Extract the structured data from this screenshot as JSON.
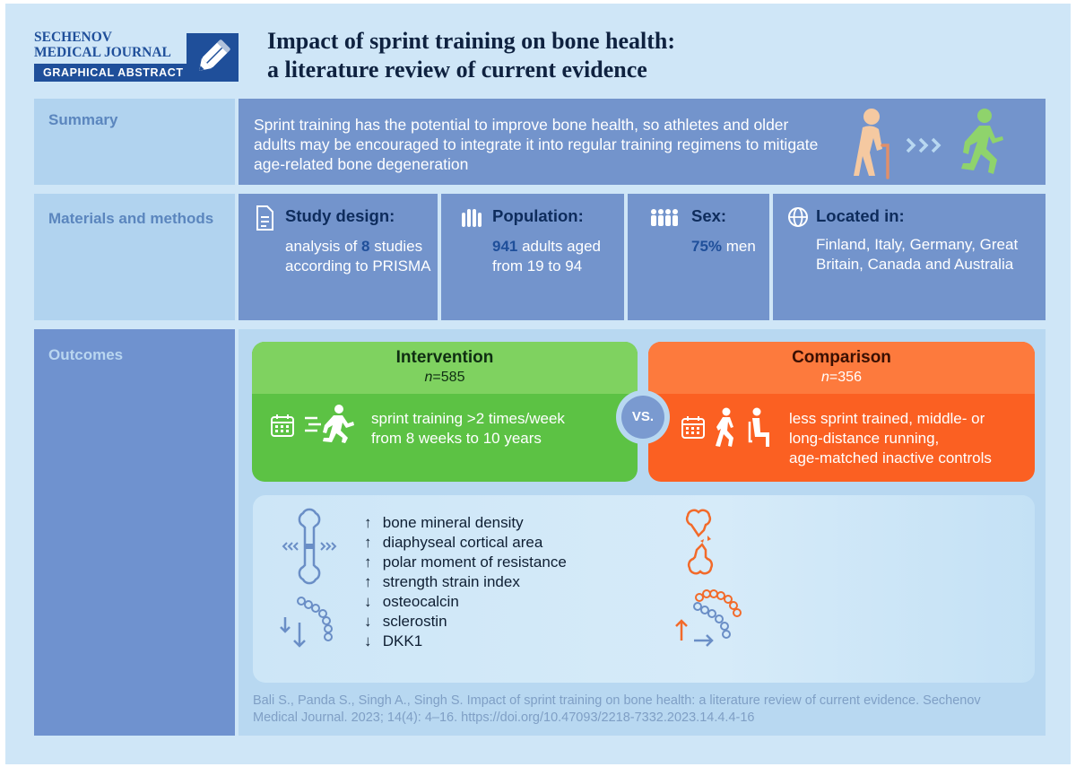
{
  "header": {
    "logo_line1": "SECHENOV",
    "logo_line2": "MEDICAL JOURNAL",
    "logo_bar": "GRAPHICAL ABSTRACT",
    "title_line1": "Impact of sprint training on bone health:",
    "title_line2": "a literature review of current evidence"
  },
  "summary": {
    "label": "Summary",
    "text": "Sprint training has the potential to improve bone health, so athletes and older adults may be encouraged to integrate it into regular training regimens to mitigate age-related bone degeneration"
  },
  "methods": {
    "label": "Materials and methods",
    "study_design": {
      "title": "Study design:",
      "pre": "analysis of ",
      "value": "8",
      "post": " studies",
      "line2": "according to PRISMA"
    },
    "population": {
      "title": "Population:",
      "value": "941",
      "post": " adults aged",
      "line2": "from 19 to 94"
    },
    "sex": {
      "title": "Sex:",
      "value": "75%",
      "post": " men"
    },
    "located": {
      "title": "Located in:",
      "line1": "Finland, Italy, Germany, Great",
      "line2": "Britain, Canada and Australia"
    }
  },
  "outcomes": {
    "label": "Outcomes",
    "intervention": {
      "name": "Intervention",
      "n_label": "n",
      "n_value": "=585",
      "line1": "sprint training >2 times/week",
      "line2": "from 8 weeks to 10 years"
    },
    "vs": "VS.",
    "comparison": {
      "name": "Comparison",
      "n_label": "n",
      "n_value": "=356",
      "line1": "less sprint trained, middle- or",
      "line2": "long-distance running,",
      "line3": "age-matched inactive controls"
    },
    "results": [
      {
        "arrow": "↑",
        "text": "bone mineral density"
      },
      {
        "arrow": "↑",
        "text": "diaphyseal cortical area"
      },
      {
        "arrow": "↑",
        "text": "polar moment of resistance"
      },
      {
        "arrow": "↑",
        "text": "strength strain index"
      },
      {
        "arrow": "↓",
        "text": "osteocalcin"
      },
      {
        "arrow": "↓",
        "text": "sclerostin"
      },
      {
        "arrow": "↓",
        "text": "DKK1"
      }
    ]
  },
  "citation": {
    "line1": "Bali S., Panda S., Singh A., Singh S. Impact of sprint training on bone health: a literature review of current evidence. Sechenov",
    "line2": "Medical Journal. 2023; 14(4): 4–16. https://doi.org/10.47093/2218-7332.2023.14.4.4-16"
  },
  "colors": {
    "navy": "#1f4f9a",
    "panel": "#7394cc",
    "intervention": "#5cc244",
    "comparison": "#fb6022"
  }
}
